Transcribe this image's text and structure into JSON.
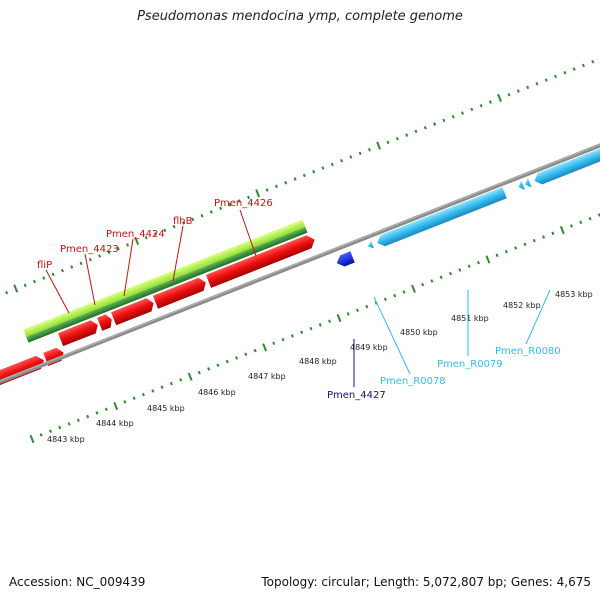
{
  "title": "Pseudomonas mendocina ymp, complete genome",
  "footer": {
    "accession": "Accession: NC_009439",
    "summary": "Topology: circular; Length: 5,072,807 bp; Genes: 4,675"
  },
  "colors": {
    "forward_cds": "#e81010",
    "reverse_cds": "#0b1fd0",
    "rna": "#33bbee",
    "operon_light": "#99ee33",
    "operon_dark": "#2f8f2f",
    "ticks": "#2e8b2e",
    "backbone": "#8c8c8c",
    "forward_label": "#cc1111",
    "reverse_label": "#10107f",
    "rna_label": "#33bbee"
  },
  "scale_labels": [
    "4843 kbp",
    "4844 kbp",
    "4845 kbp",
    "4846 kbp",
    "4847 kbp",
    "4848 kbp",
    "4849 kbp",
    "4850 kbp",
    "4851 kbp",
    "4852 kbp",
    "4853 kbp"
  ],
  "gene_labels": {
    "fliP": "fliP",
    "Pmen_4423": "Pmen_4423",
    "Pmen_4424": "Pmen_4424",
    "flhB": "flhB",
    "Pmen_4426": "Pmen_4426",
    "Pmen_4427": "Pmen_4427",
    "Pmen_R0078": "Pmen_R0078",
    "Pmen_R0079": "Pmen_R0079",
    "Pmen_R0080": "Pmen_R0080"
  }
}
